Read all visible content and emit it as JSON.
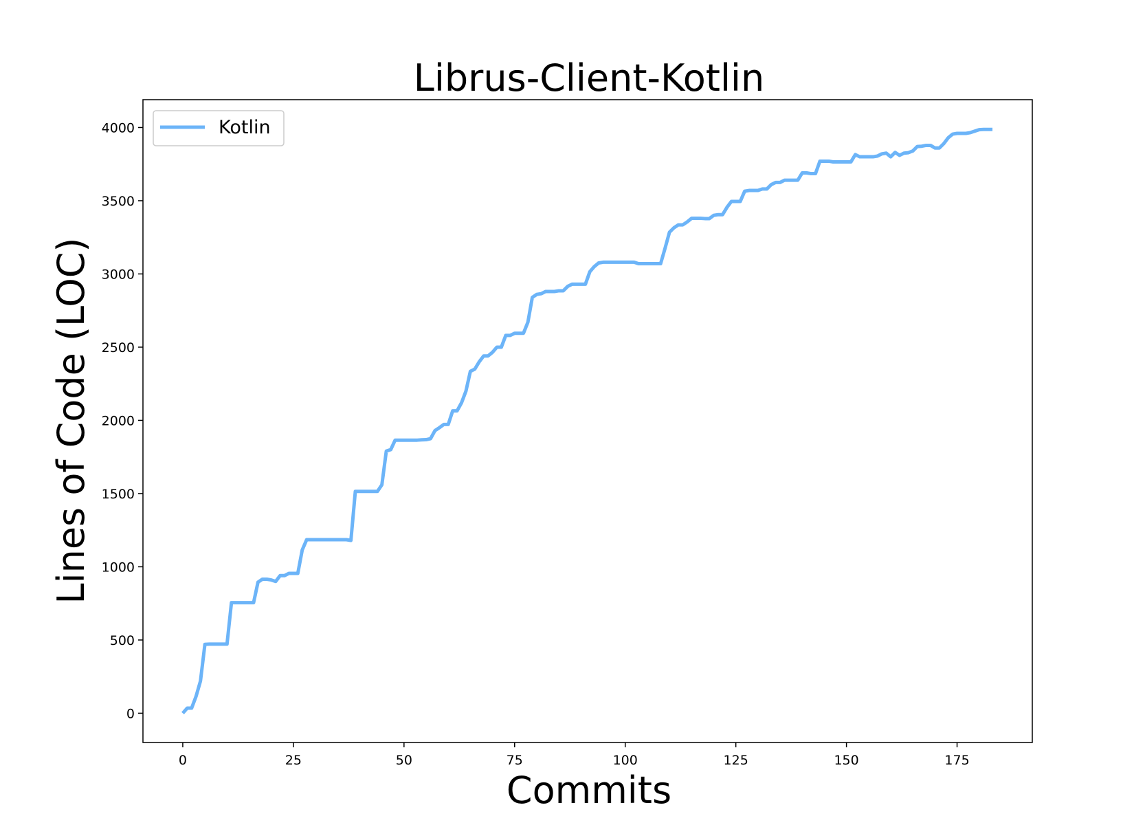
{
  "chart_data": {
    "type": "line",
    "title": "Librus-Client-Kotlin",
    "xlabel": "Commits",
    "ylabel": "Lines of Code (LOC)",
    "xlim": [
      -9,
      192
    ],
    "ylim": [
      -200,
      4190
    ],
    "xticks": [
      0,
      25,
      50,
      75,
      100,
      125,
      150,
      175
    ],
    "yticks": [
      0,
      500,
      1000,
      1500,
      2000,
      2500,
      3000,
      3500,
      4000
    ],
    "grid": false,
    "legend_position": "top-left",
    "series": [
      {
        "name": "Kotlin",
        "color": "#6cb4f8",
        "points": [
          [
            0,
            0
          ],
          [
            1,
            35
          ],
          [
            2,
            35
          ],
          [
            3,
            115
          ],
          [
            4,
            220
          ],
          [
            5,
            470
          ],
          [
            6,
            472
          ],
          [
            7,
            472
          ],
          [
            8,
            472
          ],
          [
            9,
            472
          ],
          [
            10,
            472
          ],
          [
            11,
            755
          ],
          [
            12,
            755
          ],
          [
            13,
            755
          ],
          [
            14,
            755
          ],
          [
            15,
            755
          ],
          [
            16,
            755
          ],
          [
            17,
            895
          ],
          [
            18,
            915
          ],
          [
            19,
            915
          ],
          [
            20,
            910
          ],
          [
            21,
            900
          ],
          [
            22,
            940
          ],
          [
            23,
            940
          ],
          [
            24,
            955
          ],
          [
            25,
            955
          ],
          [
            26,
            955
          ],
          [
            27,
            1115
          ],
          [
            28,
            1185
          ],
          [
            29,
            1185
          ],
          [
            30,
            1185
          ],
          [
            31,
            1185
          ],
          [
            32,
            1185
          ],
          [
            33,
            1185
          ],
          [
            34,
            1185
          ],
          [
            35,
            1185
          ],
          [
            36,
            1185
          ],
          [
            37,
            1185
          ],
          [
            38,
            1180
          ],
          [
            39,
            1515
          ],
          [
            40,
            1515
          ],
          [
            41,
            1515
          ],
          [
            42,
            1515
          ],
          [
            43,
            1515
          ],
          [
            44,
            1515
          ],
          [
            45,
            1560
          ],
          [
            46,
            1790
          ],
          [
            47,
            1800
          ],
          [
            48,
            1865
          ],
          [
            49,
            1865
          ],
          [
            50,
            1865
          ],
          [
            51,
            1865
          ],
          [
            52,
            1865
          ],
          [
            53,
            1865
          ],
          [
            54,
            1867
          ],
          [
            55,
            1868
          ],
          [
            56,
            1875
          ],
          [
            57,
            1930
          ],
          [
            58,
            1950
          ],
          [
            59,
            1972
          ],
          [
            60,
            1972
          ],
          [
            61,
            2065
          ],
          [
            62,
            2065
          ],
          [
            63,
            2120
          ],
          [
            64,
            2200
          ],
          [
            65,
            2335
          ],
          [
            66,
            2350
          ],
          [
            67,
            2400
          ],
          [
            68,
            2440
          ],
          [
            69,
            2440
          ],
          [
            70,
            2465
          ],
          [
            71,
            2500
          ],
          [
            72,
            2500
          ],
          [
            73,
            2580
          ],
          [
            74,
            2580
          ],
          [
            75,
            2595
          ],
          [
            76,
            2595
          ],
          [
            77,
            2595
          ],
          [
            78,
            2670
          ],
          [
            79,
            2840
          ],
          [
            80,
            2860
          ],
          [
            81,
            2865
          ],
          [
            82,
            2880
          ],
          [
            83,
            2880
          ],
          [
            84,
            2880
          ],
          [
            85,
            2885
          ],
          [
            86,
            2885
          ],
          [
            87,
            2915
          ],
          [
            88,
            2930
          ],
          [
            89,
            2930
          ],
          [
            90,
            2930
          ],
          [
            91,
            2930
          ],
          [
            92,
            3015
          ],
          [
            93,
            3050
          ],
          [
            94,
            3075
          ],
          [
            95,
            3080
          ],
          [
            96,
            3080
          ],
          [
            97,
            3080
          ],
          [
            98,
            3080
          ],
          [
            99,
            3080
          ],
          [
            100,
            3080
          ],
          [
            101,
            3080
          ],
          [
            102,
            3080
          ],
          [
            103,
            3070
          ],
          [
            104,
            3070
          ],
          [
            105,
            3070
          ],
          [
            106,
            3070
          ],
          [
            107,
            3070
          ],
          [
            108,
            3070
          ],
          [
            109,
            3175
          ],
          [
            110,
            3285
          ],
          [
            111,
            3315
          ],
          [
            112,
            3335
          ],
          [
            113,
            3335
          ],
          [
            114,
            3355
          ],
          [
            115,
            3380
          ],
          [
            116,
            3380
          ],
          [
            117,
            3380
          ],
          [
            118,
            3378
          ],
          [
            119,
            3378
          ],
          [
            120,
            3400
          ],
          [
            121,
            3405
          ],
          [
            122,
            3405
          ],
          [
            123,
            3455
          ],
          [
            124,
            3495
          ],
          [
            125,
            3495
          ],
          [
            126,
            3495
          ],
          [
            127,
            3565
          ],
          [
            128,
            3570
          ],
          [
            129,
            3570
          ],
          [
            130,
            3570
          ],
          [
            131,
            3580
          ],
          [
            132,
            3580
          ],
          [
            133,
            3610
          ],
          [
            134,
            3625
          ],
          [
            135,
            3625
          ],
          [
            136,
            3640
          ],
          [
            137,
            3640
          ],
          [
            138,
            3640
          ],
          [
            139,
            3640
          ],
          [
            140,
            3690
          ],
          [
            141,
            3690
          ],
          [
            142,
            3685
          ],
          [
            143,
            3685
          ],
          [
            144,
            3770
          ],
          [
            145,
            3770
          ],
          [
            146,
            3770
          ],
          [
            147,
            3765
          ],
          [
            148,
            3765
          ],
          [
            149,
            3765
          ],
          [
            150,
            3765
          ],
          [
            151,
            3765
          ],
          [
            152,
            3815
          ],
          [
            153,
            3800
          ],
          [
            154,
            3800
          ],
          [
            155,
            3800
          ],
          [
            156,
            3800
          ],
          [
            157,
            3805
          ],
          [
            158,
            3820
          ],
          [
            159,
            3825
          ],
          [
            160,
            3800
          ],
          [
            161,
            3830
          ],
          [
            162,
            3810
          ],
          [
            163,
            3825
          ],
          [
            164,
            3828
          ],
          [
            165,
            3840
          ],
          [
            166,
            3870
          ],
          [
            167,
            3872
          ],
          [
            168,
            3878
          ],
          [
            169,
            3878
          ],
          [
            170,
            3860
          ],
          [
            171,
            3860
          ],
          [
            172,
            3890
          ],
          [
            173,
            3930
          ],
          [
            174,
            3955
          ],
          [
            175,
            3960
          ],
          [
            176,
            3960
          ],
          [
            177,
            3960
          ],
          [
            178,
            3965
          ],
          [
            179,
            3975
          ],
          [
            180,
            3985
          ],
          [
            181,
            3987
          ],
          [
            182,
            3987
          ],
          [
            183,
            3987
          ]
        ]
      }
    ]
  }
}
